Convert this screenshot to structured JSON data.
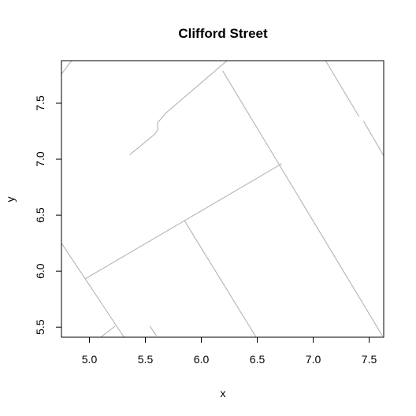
{
  "chart_data": {
    "type": "map",
    "title": "Clifford Street",
    "xlabel": "x",
    "ylabel": "y",
    "xlim": [
      4.75,
      7.63
    ],
    "ylim": [
      5.41,
      7.88
    ],
    "xticks": [
      5.0,
      5.5,
      6.0,
      6.5,
      7.0,
      7.5
    ],
    "xtick_labels": [
      "5.0",
      "5.5",
      "6.0",
      "6.5",
      "7.0",
      "7.5"
    ],
    "yticks": [
      5.5,
      6.0,
      6.5,
      7.0,
      7.5
    ],
    "ytick_labels": [
      "5.5",
      "6.0",
      "6.5",
      "7.0",
      "7.5"
    ],
    "line_color": "#b4b4b4",
    "grid": false,
    "segments": [
      [
        [
          5.36,
          7.04
        ],
        [
          5.58,
          7.22
        ],
        [
          5.61,
          7.26
        ],
        [
          5.61,
          7.33
        ],
        [
          5.64,
          7.36
        ],
        [
          5.68,
          7.41
        ],
        [
          6.23,
          7.88
        ]
      ],
      [
        [
          4.75,
          7.76
        ],
        [
          4.84,
          7.88
        ]
      ],
      [
        [
          4.96,
          5.93
        ],
        [
          6.72,
          6.96
        ]
      ],
      [
        [
          6.19,
          7.79
        ],
        [
          7.62,
          5.42
        ]
      ],
      [
        [
          4.75,
          6.25
        ],
        [
          5.31,
          5.41
        ]
      ],
      [
        [
          5.85,
          6.45
        ],
        [
          6.49,
          5.41
        ]
      ],
      [
        [
          5.1,
          5.41
        ],
        [
          5.23,
          5.51
        ]
      ],
      [
        [
          5.54,
          5.51
        ],
        [
          5.6,
          5.42
        ]
      ],
      [
        [
          7.11,
          7.88
        ],
        [
          7.41,
          7.38
        ]
      ],
      [
        [
          7.45,
          7.34
        ],
        [
          7.63,
          7.03
        ]
      ]
    ]
  }
}
